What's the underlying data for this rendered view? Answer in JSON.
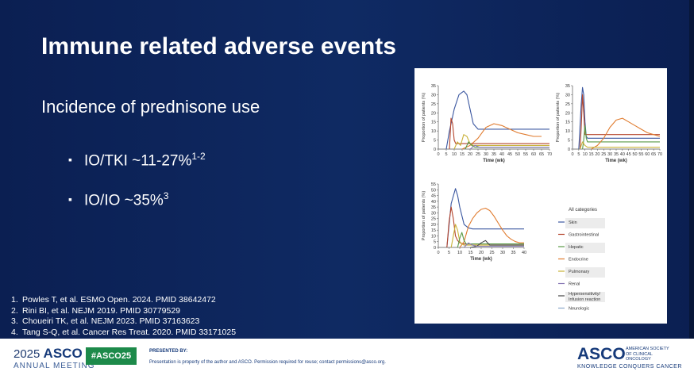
{
  "slide": {
    "title": "Immune related adverse events",
    "subtitle": "Incidence of prednisone use",
    "bullets": [
      {
        "text": "IO/TKI ~11-27%",
        "sup": "1-2"
      },
      {
        "text": "IO/IO ~35%",
        "sup": "3"
      }
    ],
    "references": [
      {
        "num": "1.",
        "text": "Powles T, et al. ESMO Open. 2024. PMID 38642472"
      },
      {
        "num": "2.",
        "text": "Rini BI, et al. NEJM 2019. PMID 30779529"
      },
      {
        "num": "3.",
        "text": "Choueiri TK, et al. NEJM 2023. PMID 37163623"
      },
      {
        "num": "4.",
        "text": "Tang S-Q, et al. Cancer Res Treat. 2020. PMID 33171025"
      }
    ]
  },
  "footer": {
    "year": "2025",
    "asco": "ASCO",
    "annual_meeting": "ANNUAL MEETING",
    "hashtag": "#ASCO25",
    "presented_by": "PRESENTED BY:",
    "disclaimer": "Presentation is property of the author and ASCO. Permission required for reuse; contact permissions@asco.org.",
    "asco_logo": "ASCO",
    "society": "AMERICAN SOCIETY OF CLINICAL ONCOLOGY",
    "tagline": "KNOWLEDGE CONQUERS CANCER"
  },
  "chart_data": [
    {
      "type": "line",
      "xlabel": "Time (wk)",
      "ylabel": "Proportion of patients (%)",
      "xticks": [
        0,
        5,
        10,
        15,
        20,
        25,
        30,
        35,
        40,
        45,
        50,
        55,
        60,
        65,
        70
      ],
      "yticks": [
        0,
        5,
        10,
        15,
        20,
        25,
        30,
        35
      ],
      "xlim": [
        0,
        70
      ],
      "ylim": [
        0,
        35
      ],
      "series": [
        {
          "color": "#3b57a0",
          "x": [
            5,
            7,
            10,
            13,
            16,
            18,
            20,
            22,
            25,
            28,
            30,
            70
          ],
          "y": [
            0,
            10,
            22,
            30,
            32,
            30,
            22,
            14,
            11,
            11,
            11,
            11
          ]
        },
        {
          "color": "#e07b2e",
          "x": [
            15,
            20,
            25,
            30,
            35,
            40,
            45,
            50,
            55,
            60,
            65
          ],
          "y": [
            0,
            2,
            6,
            12,
            14,
            13,
            11,
            9,
            8,
            7,
            7
          ]
        },
        {
          "color": "#b5452c",
          "x": [
            7,
            8,
            9,
            10,
            11,
            70
          ],
          "y": [
            0,
            17,
            14,
            5,
            3,
            3
          ]
        },
        {
          "color": "#c9b23a",
          "x": [
            10,
            12,
            14,
            16,
            18,
            20,
            22,
            70
          ],
          "y": [
            0,
            4,
            2,
            8,
            7,
            3,
            2,
            2
          ]
        },
        {
          "color": "#5a9a46",
          "x": [
            17,
            19,
            21,
            23,
            25,
            70
          ],
          "y": [
            0,
            4,
            2,
            1,
            1,
            1
          ]
        },
        {
          "color": "#8a7bb6",
          "x": [
            20,
            23,
            26,
            29,
            70
          ],
          "y": [
            0,
            2,
            1,
            1,
            1
          ]
        }
      ]
    },
    {
      "type": "line",
      "xlabel": "Time (wk)",
      "ylabel": "Proportion of patients (%)",
      "xticks": [
        0,
        5,
        10,
        15,
        20,
        25,
        30,
        35,
        40,
        45,
        50,
        55,
        60,
        65,
        70
      ],
      "yticks": [
        0,
        5,
        10,
        15,
        20,
        25,
        30,
        35
      ],
      "xlim": [
        0,
        70
      ],
      "ylim": [
        0,
        35
      ],
      "series": [
        {
          "color": "#3b57a0",
          "x": [
            5,
            7,
            8,
            9,
            10,
            11,
            12,
            70
          ],
          "y": [
            0,
            25,
            34,
            30,
            15,
            7,
            6,
            6
          ]
        },
        {
          "color": "#b5452c",
          "x": [
            6,
            7,
            8,
            9,
            10,
            70
          ],
          "y": [
            0,
            12,
            30,
            20,
            8,
            8
          ]
        },
        {
          "color": "#5a9a46",
          "x": [
            8,
            9,
            10,
            11,
            12,
            70
          ],
          "y": [
            0,
            5,
            13,
            6,
            4,
            4
          ]
        },
        {
          "color": "#e07b2e",
          "x": [
            15,
            20,
            25,
            30,
            35,
            40,
            45,
            50,
            55,
            60,
            65,
            70
          ],
          "y": [
            0,
            2,
            6,
            12,
            16,
            17,
            15,
            13,
            11,
            9,
            8,
            7
          ]
        },
        {
          "color": "#c9b23a",
          "x": [
            6,
            8,
            10,
            12,
            70
          ],
          "y": [
            0,
            4,
            2,
            1,
            1
          ]
        }
      ]
    },
    {
      "type": "line",
      "xlabel": "Time (wk)",
      "ylabel": "Proportion of patients (%)",
      "xticks": [
        0,
        5,
        10,
        15,
        20,
        25,
        30,
        35,
        40
      ],
      "yticks": [
        0,
        5,
        10,
        15,
        20,
        25,
        30,
        35,
        40,
        45,
        50,
        55
      ],
      "xlim": [
        0,
        40
      ],
      "ylim": [
        0,
        55
      ],
      "series": [
        {
          "color": "#3b57a0",
          "x": [
            4,
            6,
            8,
            9,
            10,
            12,
            14,
            16,
            18,
            40
          ],
          "y": [
            0,
            38,
            51,
            45,
            35,
            20,
            17,
            16,
            16,
            16
          ]
        },
        {
          "color": "#b5452c",
          "x": [
            4,
            5,
            6,
            7,
            8,
            9,
            10,
            12,
            40
          ],
          "y": [
            0,
            22,
            35,
            25,
            10,
            6,
            4,
            3,
            3
          ]
        },
        {
          "color": "#e07b2e",
          "x": [
            10,
            12,
            14,
            16,
            18,
            20,
            22,
            24,
            26,
            28,
            30,
            32,
            34,
            36,
            38,
            40
          ],
          "y": [
            0,
            5,
            18,
            25,
            30,
            33,
            34,
            32,
            27,
            21,
            15,
            10,
            7,
            5,
            4,
            4
          ]
        },
        {
          "color": "#c9b23a",
          "x": [
            6,
            8,
            9,
            10,
            11,
            12,
            40
          ],
          "y": [
            0,
            20,
            15,
            5,
            3,
            2,
            2
          ]
        },
        {
          "color": "#5a9a46",
          "x": [
            9,
            10,
            11,
            12,
            13,
            40
          ],
          "y": [
            0,
            8,
            13,
            6,
            3,
            3
          ]
        },
        {
          "color": "#444444",
          "x": [
            15,
            18,
            20,
            22,
            24,
            40
          ],
          "y": [
            0,
            1,
            4,
            6,
            2,
            2
          ]
        },
        {
          "color": "#8a7bb6",
          "x": [
            12,
            14,
            16,
            18,
            40
          ],
          "y": [
            0,
            4,
            2,
            1,
            1
          ]
        }
      ]
    }
  ],
  "legend": {
    "title": "All categories",
    "items": [
      {
        "label": "Skin",
        "color": "#3b57a0"
      },
      {
        "label": "Gastrointestinal",
        "color": "#b5452c"
      },
      {
        "label": "Hepatic",
        "color": "#5a9a46"
      },
      {
        "label": "Endocrine",
        "color": "#e07b2e"
      },
      {
        "label": "Pulmonary",
        "color": "#c9b23a"
      },
      {
        "label": "Renal",
        "color": "#8a7bb6"
      },
      {
        "label": "Hypersensitivity/ Infusion reaction",
        "color": "#444444"
      },
      {
        "label": "Neurologic",
        "color": "#8aa8c9"
      }
    ]
  }
}
